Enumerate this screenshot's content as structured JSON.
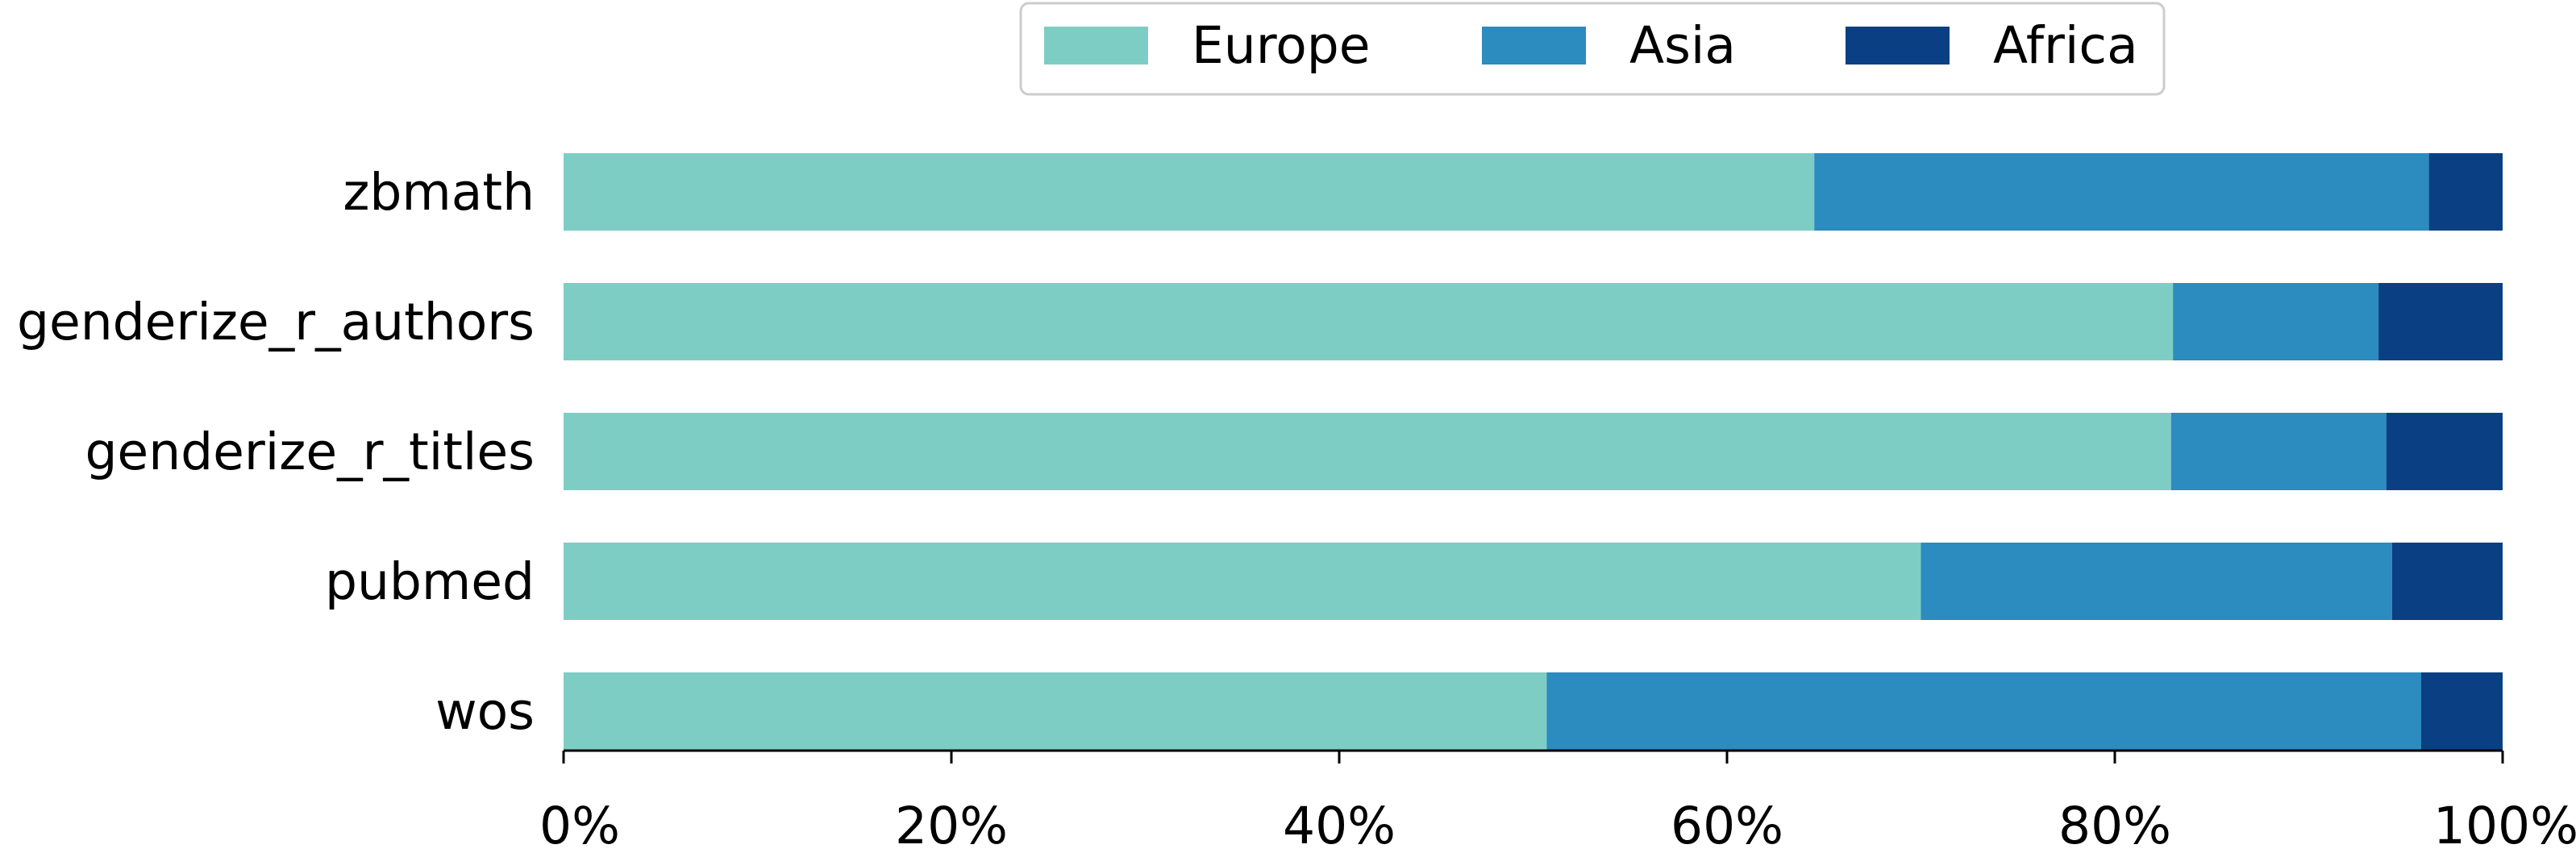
{
  "chart_data": {
    "type": "bar",
    "orientation": "horizontal",
    "stacked": true,
    "normalized": true,
    "categories": [
      "zbmath",
      "genderize_r_authors",
      "genderize_r_titles",
      "pubmed",
      "wos"
    ],
    "series": [
      {
        "name": "Europe",
        "values": [
          64.5,
          83.0,
          82.9,
          70.0,
          50.7
        ],
        "color": "#7ecdc4"
      },
      {
        "name": "Asia",
        "values": [
          31.7,
          10.6,
          11.1,
          24.3,
          45.1
        ],
        "color": "#2c8bbf"
      },
      {
        "name": "Africa",
        "values": [
          3.8,
          6.4,
          6.0,
          5.7,
          4.2
        ],
        "color": "#0b3f83"
      }
    ],
    "xlim": [
      0,
      100
    ],
    "x_ticks": [
      "0%",
      "20%",
      "40%",
      "60%",
      "80%",
      "100%"
    ],
    "title": "",
    "xlabel": "",
    "ylabel": "",
    "grid": false,
    "legend_position": "top-center"
  }
}
